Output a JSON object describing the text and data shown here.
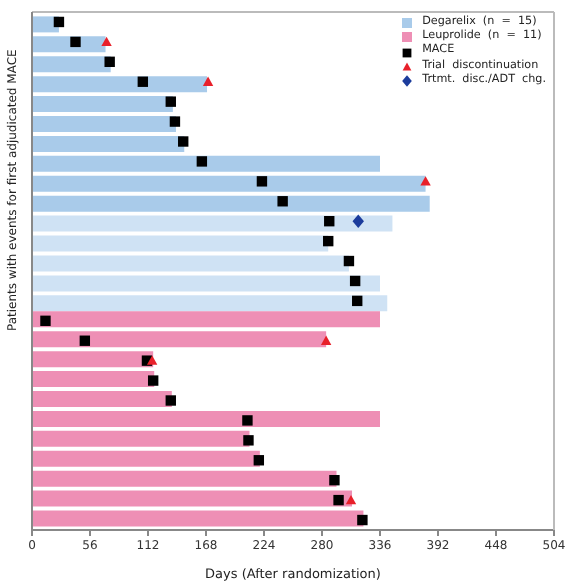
{
  "chart_data": {
    "type": "bar",
    "orientation": "horizontal",
    "xlabel": "Days  (After  randomization)",
    "ylabel": "Patients with events for first adjudicated MACE",
    "categories": [
      null,
      null,
      null,
      null,
      null,
      null,
      null,
      null,
      null,
      null,
      null,
      null,
      null,
      null,
      null,
      null,
      null,
      null,
      null,
      null,
      null,
      null,
      null,
      null,
      null,
      null
    ],
    "series": [
      {
        "name": "Degarelix  (n  =  15)",
        "color": "#a9cbea",
        "colors": [
          "#a9cbea",
          "#a9cbea",
          "#a9cbea",
          "#a9cbea",
          "#a9cbea",
          "#a9cbea",
          "#a9cbea",
          "#a9cbea",
          "#a9cbea",
          "#a9cbea",
          "#cfe2f4",
          "#cfe2f4",
          "#cfe2f4",
          "#cfe2f4",
          "#cfe2f4",
          null,
          null,
          null,
          null,
          null,
          null,
          null,
          null,
          null,
          null,
          null
        ],
        "values": [
          26,
          71,
          76,
          169,
          136,
          139,
          147,
          336,
          380,
          384,
          348,
          286,
          306,
          336,
          343,
          null,
          null,
          null,
          null,
          null,
          null,
          null,
          null,
          null,
          null,
          null
        ]
      },
      {
        "name": "Leuprolide  (n  =  11)",
        "color": "#ee8fb5",
        "values": [
          null,
          null,
          null,
          null,
          null,
          null,
          null,
          null,
          null,
          null,
          null,
          null,
          null,
          null,
          null,
          336,
          284,
          117,
          118,
          135,
          336,
          210,
          220,
          294,
          309,
          320
        ]
      },
      {
        "name": "MACE",
        "type": "scatter",
        "marker": "square",
        "color": "#000000",
        "values": [
          26,
          42,
          75,
          107,
          134,
          138,
          146,
          164,
          222,
          242,
          287,
          286,
          306,
          312,
          314,
          13,
          51,
          111,
          117,
          134,
          208,
          209,
          219,
          292,
          296,
          319
        ]
      },
      {
        "name": "Trial  discontinuation",
        "type": "scatter",
        "marker": "triangle",
        "color": "#e8202a",
        "values": [
          null,
          72,
          null,
          170,
          null,
          null,
          null,
          null,
          380,
          null,
          null,
          null,
          null,
          null,
          null,
          null,
          284,
          116,
          null,
          null,
          null,
          null,
          null,
          null,
          308,
          null
        ]
      },
      {
        "name": "Trtmt.  disc./ADT  chg.",
        "type": "scatter",
        "marker": "diamond",
        "color": "#1c3c9c",
        "values": [
          null,
          null,
          null,
          null,
          null,
          null,
          null,
          null,
          null,
          null,
          315,
          null,
          null,
          null,
          null,
          null,
          null,
          null,
          null,
          null,
          null,
          null,
          null,
          null,
          null,
          null
        ]
      }
    ],
    "xlim": [
      0,
      504
    ],
    "xticks": [
      0,
      56,
      112,
      168,
      224,
      280,
      336,
      392,
      448,
      504
    ],
    "tick_labels": "x",
    "legend": "top right",
    "grid": false
  }
}
